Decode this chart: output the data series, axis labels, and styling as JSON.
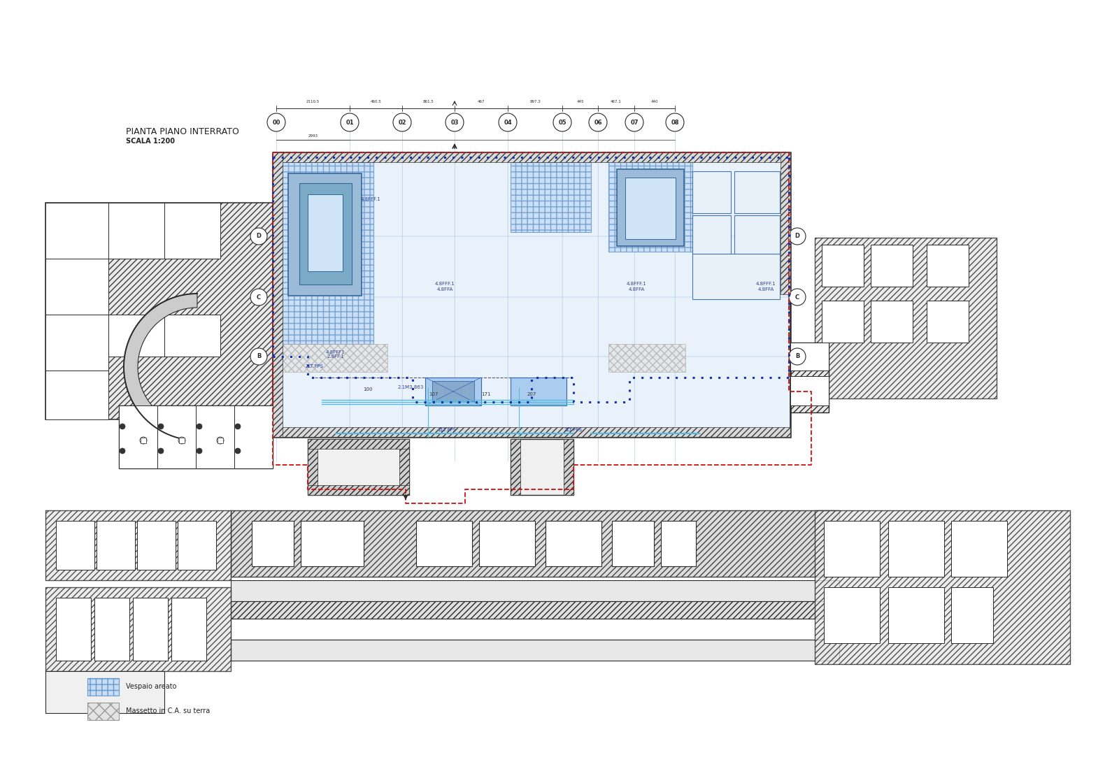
{
  "title": "PIANTA PIANO INTERRATO",
  "subtitle": "SCALA 1:200",
  "background_color": "#ffffff",
  "legend_items": [
    {
      "label": "Vespaio areato",
      "facecolor": "#c8dff5",
      "edgecolor": "#7aaad0",
      "hatch": "++"
    },
    {
      "label": "Massetto in C.A. su terra",
      "facecolor": "#e0e0e0",
      "edgecolor": "#999999",
      "hatch": "xx"
    }
  ],
  "col_labels": [
    "00",
    "01",
    "02",
    "03",
    "04",
    "05",
    "06",
    "07",
    "08"
  ],
  "row_labels": [
    "D",
    "C",
    "B"
  ],
  "red_dashed_color": "#cc1111",
  "blue_dot_color": "#1133aa",
  "wall_color": "#2a2a2a",
  "hatch_color": "#888888",
  "grid_color": "#aac0dd",
  "blue_fill": "#d0e4f8",
  "blue_fill_alpha": 0.45,
  "fig_width": 16.0,
  "fig_height": 11.0
}
